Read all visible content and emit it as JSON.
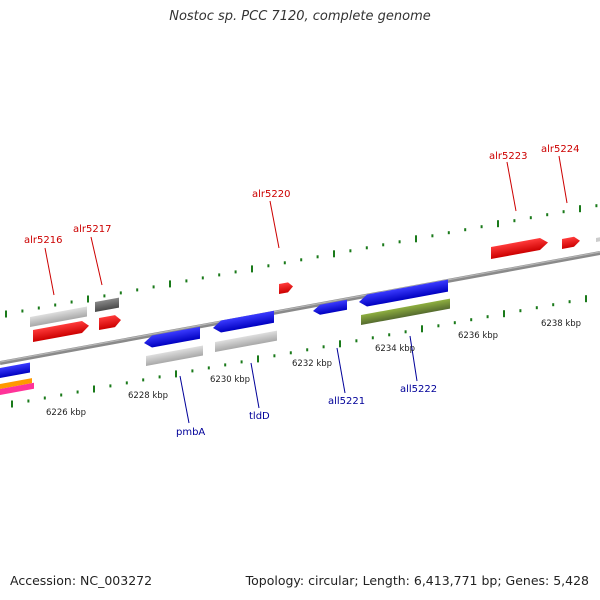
{
  "title": "Nostoc sp. PCC 7120, complete genome",
  "footer": {
    "accession": "Accession: NC_003272",
    "summary": "Topology: circular; Length: 6,413,771 bp; Genes: 5,428"
  },
  "colors": {
    "forward_label": "#cc0000",
    "reverse_label": "#000099",
    "tick": "#1a7a1a",
    "red_gene": "#ff0000",
    "blue_gene": "#0000ee",
    "gray_gene": "#b8b8b8",
    "dark_gene": "#666666",
    "olive_gene": "#6b8e23"
  },
  "scale_labels": [
    "6226 kbp",
    "6228 kbp",
    "6230 kbp",
    "6232 kbp",
    "6234 kbp",
    "6236 kbp",
    "6238 kbp"
  ],
  "forward_gene_labels": [
    "alr5216",
    "alr5217",
    "alr5220",
    "alr5223",
    "alr5224"
  ],
  "reverse_gene_labels": [
    "pmbA",
    "tldD",
    "all5221",
    "all5222"
  ]
}
